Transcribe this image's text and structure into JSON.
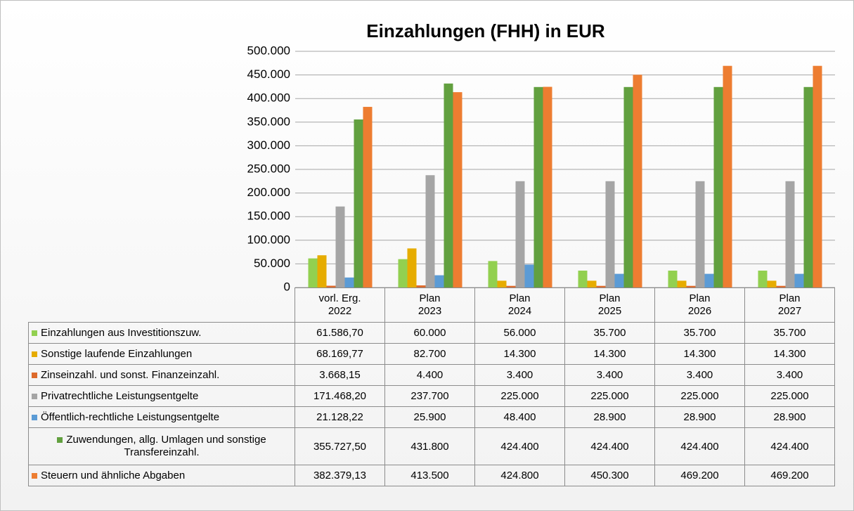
{
  "chart_data": {
    "type": "bar",
    "title": "Einzahlungen (FHH) in EUR",
    "categories": [
      "vorl. Erg.\n2022",
      "Plan\n2023",
      "Plan\n2024",
      "Plan\n2025",
      "Plan\n2026",
      "Plan\n2027"
    ],
    "ylim": [
      0,
      500000
    ],
    "yticks": [
      0,
      {
        "value": 50000,
        "label": "50.000"
      },
      {
        "value": 100000,
        "label": "100.000"
      },
      {
        "value": 150000,
        "label": "150.000"
      },
      {
        "value": 200000,
        "label": "200.000"
      },
      {
        "value": 250000,
        "label": "250.000"
      },
      {
        "value": 300000,
        "label": "300.000"
      },
      {
        "value": 350000,
        "label": "350.000"
      },
      {
        "value": 400000,
        "label": "400.000"
      },
      {
        "value": 450000,
        "label": "450.000"
      },
      {
        "value": 500000,
        "label": "500.000"
      }
    ],
    "grid": true,
    "series": [
      {
        "name": "Einzahlungen aus Investitionszuw.",
        "color": "#92d050",
        "values": [
          61586.7,
          60000,
          56000,
          35700,
          35700,
          35700
        ],
        "value_labels": [
          "61.586,70",
          "60.000",
          "56.000",
          "35.700",
          "35.700",
          "35.700"
        ]
      },
      {
        "name": "Sonstige laufende Einzahlungen",
        "color": "#e6ac00",
        "values": [
          68169.77,
          82700,
          14300,
          14300,
          14300,
          14300
        ],
        "value_labels": [
          "68.169,77",
          "82.700",
          "14.300",
          "14.300",
          "14.300",
          "14.300"
        ]
      },
      {
        "name": "Zinseinzahl. und sonst. Finanzeinzahl.",
        "color": "#dd6a2c",
        "values": [
          3668.15,
          4400,
          3400,
          3400,
          3400,
          3400
        ],
        "value_labels": [
          "3.668,15",
          "4.400",
          "3.400",
          "3.400",
          "3.400",
          "3.400"
        ]
      },
      {
        "name": "Privatrechtliche Leistungsentgelte",
        "color": "#a5a5a5",
        "values": [
          171468.2,
          237700,
          225000,
          225000,
          225000,
          225000
        ],
        "value_labels": [
          "171.468,20",
          "237.700",
          "225.000",
          "225.000",
          "225.000",
          "225.000"
        ]
      },
      {
        "name": "Öffentlich-rechtliche Leistungsentgelte",
        "color": "#5b9bd5",
        "values": [
          21128.22,
          25900,
          48400,
          28900,
          28900,
          28900
        ],
        "value_labels": [
          "21.128,22",
          "25.900",
          "48.400",
          "28.900",
          "28.900",
          "28.900"
        ]
      },
      {
        "name": "Zuwendungen, allg. Umlagen und sonstige Transfereinzahl.",
        "color": "#62a03f",
        "values": [
          355727.5,
          431800,
          424400,
          424400,
          424400,
          424400
        ],
        "value_labels": [
          "355.727,50",
          "431.800",
          "424.400",
          "424.400",
          "424.400",
          "424.400"
        ]
      },
      {
        "name": "Steuern und ähnliche Abgaben",
        "color": "#ed7d31",
        "values": [
          382379.13,
          413500,
          424800,
          450300,
          469200,
          469200
        ],
        "value_labels": [
          "382.379,13",
          "413.500",
          "424.800",
          "450.300",
          "469.200",
          "469.200"
        ]
      }
    ]
  }
}
